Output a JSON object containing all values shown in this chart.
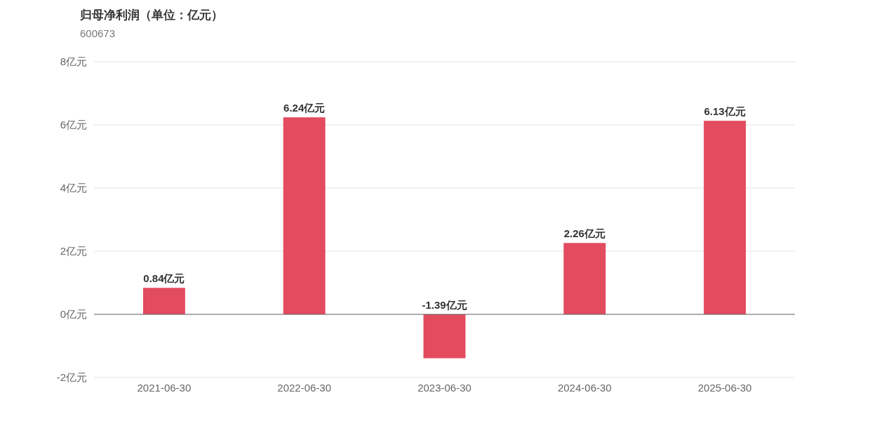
{
  "chart_data": {
    "type": "bar",
    "title": "归母净利润（单位：亿元）",
    "subtitle": "600673",
    "categories": [
      "2021-06-30",
      "2022-06-30",
      "2023-06-30",
      "2024-06-30",
      "2025-06-30"
    ],
    "values": [
      0.84,
      6.24,
      -1.39,
      2.26,
      6.13
    ],
    "value_labels": [
      "0.84亿元",
      "6.24亿元",
      "-1.39亿元",
      "2.26亿元",
      "6.13亿元"
    ],
    "color": "#e34b5f",
    "ylim": [
      -2,
      8
    ],
    "yticks": [
      {
        "value": -2,
        "label": "-2亿元"
      },
      {
        "value": 0,
        "label": "0亿元"
      },
      {
        "value": 2,
        "label": "2亿元"
      },
      {
        "value": 4,
        "label": "4亿元"
      },
      {
        "value": 6,
        "label": "6亿元"
      },
      {
        "value": 8,
        "label": "8亿元"
      }
    ],
    "grid": "y"
  }
}
